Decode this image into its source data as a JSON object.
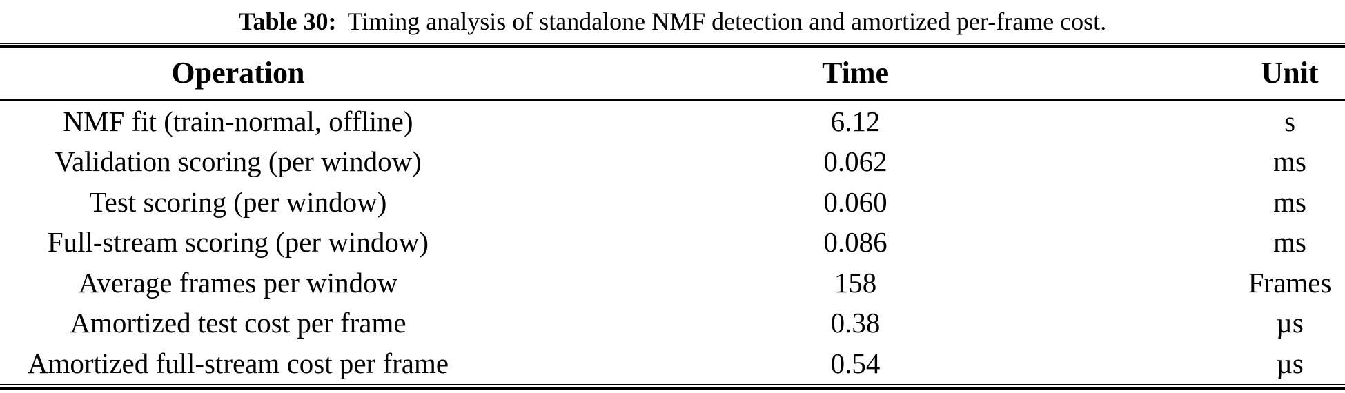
{
  "caption": {
    "label": "Table 30:",
    "text": "Timing analysis of standalone NMF detection and amortized per-frame cost."
  },
  "table": {
    "columns": [
      "Operation",
      "Time",
      "Unit"
    ],
    "rows": [
      [
        "NMF fit (train-normal, offline)",
        "6.12",
        "s"
      ],
      [
        "Validation scoring (per window)",
        "0.062",
        "ms"
      ],
      [
        "Test scoring (per window)",
        "0.060",
        "ms"
      ],
      [
        "Full-stream scoring (per window)",
        "0.086",
        "ms"
      ],
      [
        "Average frames per window",
        "158",
        "Frames"
      ],
      [
        "Amortized test cost per frame",
        "0.38",
        "µs"
      ],
      [
        "Amortized full-stream cost per frame",
        "0.54",
        "µs"
      ]
    ]
  },
  "colors": {
    "text": "#000000",
    "background": "#ffffff",
    "rule": "#000000"
  }
}
